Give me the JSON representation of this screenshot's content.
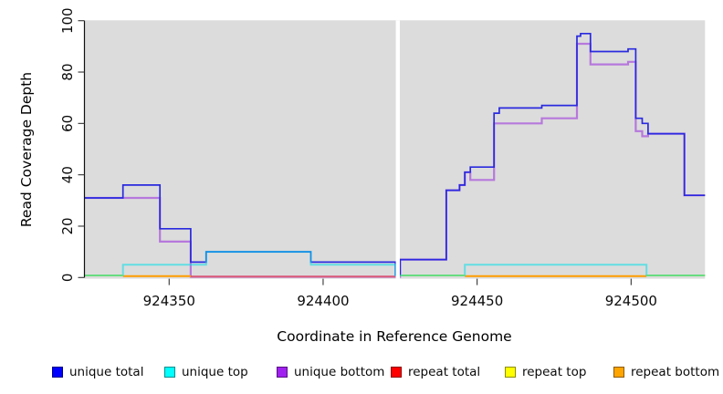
{
  "chart_data": {
    "type": "line",
    "subtype": "step-coverage-plot",
    "title": "",
    "xlabel": "Coordinate in Reference Genome",
    "ylabel": "Read Coverage Depth",
    "xlim": [
      924322.5,
      924524
    ],
    "ylim": [
      0,
      100
    ],
    "x_ticks": [
      924350,
      924400,
      924450,
      924500
    ],
    "x_tick_labels": [
      "924350",
      "924400",
      "924450",
      "924500"
    ],
    "y_ticks": [
      0,
      20,
      40,
      60,
      80,
      100
    ],
    "y_tick_labels": [
      "0",
      "20",
      "40",
      "60",
      "80",
      "100"
    ],
    "grid": false,
    "plot_bg": "#dcdcdc",
    "gap": {
      "from": 924423.6,
      "to": 924424.9,
      "color": "#ffffff"
    },
    "note": "White vertical stripe = missing coverage data near 924424; near-zero repeat/top lines drawn with tiny vertical offsets so overlapping zero-depth series stay visible (green segment = cyan over yellow).",
    "series": [
      {
        "name": "unique bottom",
        "line_color": "#b678dc",
        "width": 2.2,
        "opacity": 1,
        "paths": [
          [
            [
              924322.5,
              31
            ],
            [
              924335,
              31
            ],
            [
              924347,
              14
            ],
            [
              924357,
              0.3
            ],
            [
              924423.5,
              0.3
            ],
            [
              924425,
              7
            ],
            [
              924440,
              34
            ],
            [
              924444.3,
              36
            ],
            [
              924446,
              41
            ],
            [
              924447.8,
              38
            ],
            [
              924455.5,
              60
            ],
            [
              924471,
              62
            ],
            [
              924482.4,
              91
            ],
            [
              924486.8,
              83
            ],
            [
              924499,
              84
            ],
            [
              924501.5,
              57
            ],
            [
              924503.6,
              55
            ],
            [
              924505.5,
              56
            ],
            [
              924517.3,
              32
            ],
            [
              924524,
              32
            ]
          ]
        ]
      },
      {
        "name": "repeat total",
        "line_color": "#d95a78",
        "width": 2,
        "opacity": 1,
        "paths": [
          [
            [
              924357,
              0.35
            ],
            [
              924423.5,
              0.35
            ]
          ]
        ]
      },
      {
        "name": "repeat top",
        "line_color": "#e8d800",
        "width": 2,
        "opacity": 1,
        "paths": [
          [
            [
              924322.5,
              0.8
            ],
            [
              924335,
              0.8
            ]
          ],
          [
            [
              924425,
              0.8
            ],
            [
              924446,
              0.8
            ]
          ],
          [
            [
              924505,
              0.8
            ],
            [
              924524,
              0.8
            ]
          ]
        ]
      },
      {
        "name": "repeat bottom",
        "line_color": "#ff9d00",
        "width": 2,
        "opacity": 1,
        "paths": [
          [
            [
              924335,
              0.55
            ],
            [
              924357,
              0.55
            ]
          ],
          [
            [
              924446,
              0.55
            ],
            [
              924505,
              0.55
            ]
          ]
        ]
      },
      {
        "name": "unique total",
        "line_color": "#2a2adf",
        "width": 1.7,
        "opacity": 1,
        "paths": [
          [
            [
              924322.5,
              31
            ],
            [
              924335,
              36
            ],
            [
              924347,
              19
            ],
            [
              924357,
              6
            ],
            [
              924362,
              10
            ],
            [
              924396,
              6
            ],
            [
              924423.5,
              1
            ],
            [
              924425,
              7
            ],
            [
              924440,
              34
            ],
            [
              924444.3,
              36
            ],
            [
              924446,
              41
            ],
            [
              924447.8,
              43
            ],
            [
              924455.5,
              64
            ],
            [
              924457.2,
              66
            ],
            [
              924471,
              67
            ],
            [
              924482.4,
              94
            ],
            [
              924483.6,
              95
            ],
            [
              924486.8,
              88
            ],
            [
              924499,
              89
            ],
            [
              924501.5,
              62
            ],
            [
              924503.6,
              60
            ],
            [
              924505.5,
              56
            ],
            [
              924517.3,
              32
            ],
            [
              924524,
              32
            ]
          ]
        ]
      },
      {
        "name": "unique top",
        "line_color": "#00e0ea",
        "width": 2,
        "opacity": 0.55,
        "paths": [
          [
            [
              924322.5,
              0.8
            ],
            [
              924335,
              5
            ],
            [
              924362,
              10
            ],
            [
              924396,
              5
            ],
            [
              924423.5,
              0.8
            ],
            [
              924425,
              0.8
            ],
            [
              924446,
              5
            ],
            [
              924505,
              0.8
            ],
            [
              924524,
              0.8
            ]
          ]
        ]
      }
    ],
    "legend_position": "bottom",
    "legend": [
      {
        "label": "unique total",
        "color": "#0000ff"
      },
      {
        "label": "unique top",
        "color": "#00ffff"
      },
      {
        "label": "unique bottom",
        "color": "#a020f0"
      },
      {
        "label": "repeat total",
        "color": "#ff0000"
      },
      {
        "label": "repeat top",
        "color": "#ffff00"
      },
      {
        "label": "repeat bottom",
        "color": "#ffa500"
      }
    ],
    "colors": {
      "axis": "#111111",
      "tick": "#333333",
      "text": "#0a0a0a"
    }
  }
}
